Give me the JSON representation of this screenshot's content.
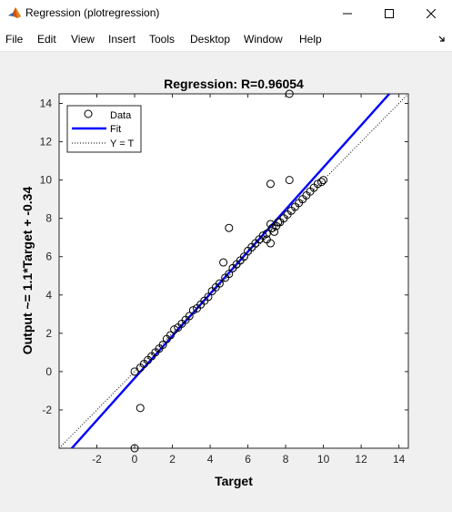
{
  "window": {
    "title": "Regression (plotregression)",
    "icon": "matlab-icon",
    "controls": [
      "minimize-icon",
      "maximize-icon",
      "close-icon"
    ]
  },
  "menu": {
    "items": [
      "File",
      "Edit",
      "View",
      "Insert",
      "Tools",
      "Desktop",
      "Window",
      "Help"
    ],
    "dock_icon": "dock-arrow-icon"
  },
  "colors": {
    "fit_line": "#0000ff",
    "points": "#000000",
    "identity": "#000000",
    "axes_bg": "#ffffff",
    "figure_bg": "#f0f0f0"
  },
  "chart_data": {
    "type": "scatter",
    "title": "Regression: R=0.96054",
    "xlabel": "Target",
    "ylabel": "Output ~= 1.1*Target + -0.34",
    "xlim": [
      -4,
      14.5
    ],
    "ylim": [
      -4,
      14.5
    ],
    "xticks": [
      -2,
      0,
      2,
      4,
      6,
      8,
      10,
      12,
      14
    ],
    "yticks": [
      -2,
      0,
      2,
      4,
      6,
      8,
      10,
      12,
      14
    ],
    "grid": false,
    "legend": {
      "placement": "top-left",
      "entries": [
        "Data",
        "Fit",
        "Y = T"
      ]
    },
    "fit": {
      "slope": 1.1,
      "intercept": -0.34
    },
    "series": [
      {
        "name": "Data",
        "points": [
          [
            8.2,
            14.5
          ],
          [
            8.2,
            10.0
          ],
          [
            7.2,
            9.8
          ],
          [
            5.0,
            7.5
          ],
          [
            4.7,
            5.7
          ],
          [
            7.2,
            7.7
          ],
          [
            7.4,
            7.3
          ],
          [
            7.0,
            6.9
          ],
          [
            7.2,
            6.7
          ],
          [
            7.6,
            7.8
          ],
          [
            0.3,
            -1.9
          ],
          [
            0.0,
            -4.0
          ],
          [
            0.0,
            0.0
          ],
          [
            0.3,
            0.2
          ],
          [
            0.5,
            0.4
          ],
          [
            0.7,
            0.6
          ],
          [
            0.9,
            0.8
          ],
          [
            1.1,
            1.0
          ],
          [
            1.3,
            1.2
          ],
          [
            1.5,
            1.4
          ],
          [
            1.7,
            1.7
          ],
          [
            1.9,
            1.9
          ],
          [
            2.1,
            2.2
          ],
          [
            2.3,
            2.3
          ],
          [
            2.5,
            2.5
          ],
          [
            2.7,
            2.7
          ],
          [
            2.9,
            2.9
          ],
          [
            3.1,
            3.2
          ],
          [
            3.3,
            3.3
          ],
          [
            3.5,
            3.5
          ],
          [
            3.7,
            3.7
          ],
          [
            3.9,
            3.9
          ],
          [
            4.1,
            4.2
          ],
          [
            4.3,
            4.4
          ],
          [
            4.5,
            4.6
          ],
          [
            4.8,
            4.9
          ],
          [
            5.0,
            5.1
          ],
          [
            5.2,
            5.4
          ],
          [
            5.4,
            5.6
          ],
          [
            5.6,
            5.8
          ],
          [
            5.8,
            6.0
          ],
          [
            6.0,
            6.3
          ],
          [
            6.2,
            6.5
          ],
          [
            6.4,
            6.7
          ],
          [
            6.6,
            6.9
          ],
          [
            6.8,
            7.1
          ],
          [
            7.0,
            7.2
          ],
          [
            7.3,
            7.5
          ],
          [
            7.5,
            7.6
          ],
          [
            7.7,
            7.8
          ],
          [
            7.9,
            8.0
          ],
          [
            8.1,
            8.2
          ],
          [
            8.3,
            8.4
          ],
          [
            8.5,
            8.6
          ],
          [
            8.7,
            8.8
          ],
          [
            8.9,
            9.0
          ],
          [
            9.1,
            9.2
          ],
          [
            9.3,
            9.4
          ],
          [
            9.5,
            9.6
          ],
          [
            9.7,
            9.8
          ],
          [
            9.9,
            9.9
          ],
          [
            10.0,
            10.0
          ]
        ]
      }
    ]
  }
}
